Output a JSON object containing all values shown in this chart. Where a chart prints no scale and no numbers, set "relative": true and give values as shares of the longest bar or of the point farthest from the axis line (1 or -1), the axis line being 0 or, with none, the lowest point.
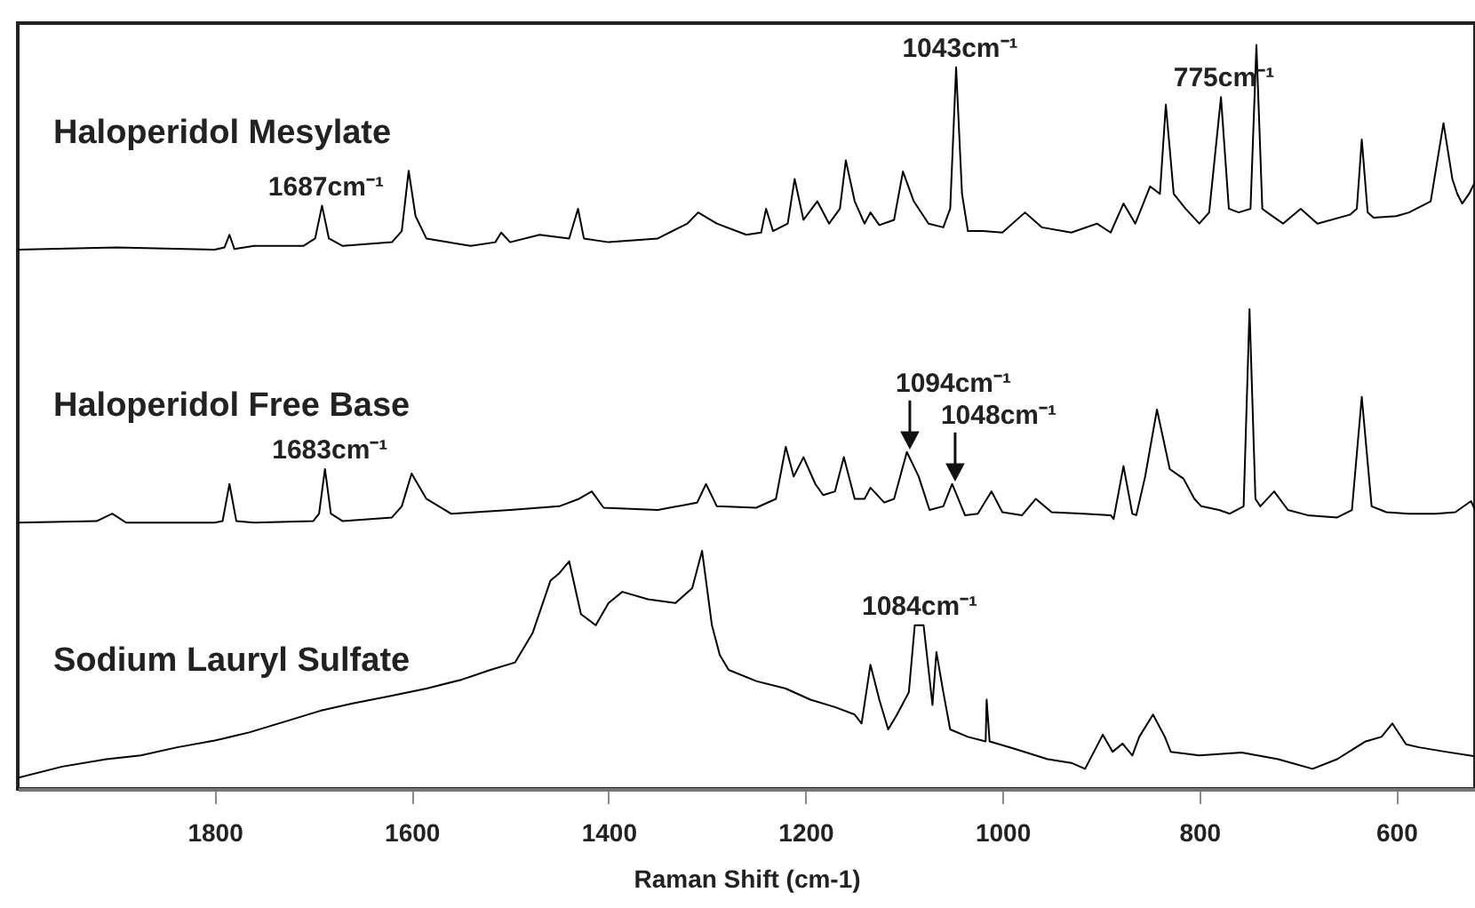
{
  "chart_data": {
    "type": "line",
    "relative": true,
    "xlabel": "Raman Shift (cm-1)",
    "xlim": [
      2000,
      520
    ],
    "xticks": [
      1800,
      1600,
      1400,
      1200,
      1000,
      800,
      600
    ],
    "line_style": "solid",
    "series": [
      {
        "name": "Haloperidol Mesylate",
        "color": "#000000",
        "x": [
          2000,
          1900,
          1800,
          1790,
          1785,
          1780,
          1760,
          1710,
          1698,
          1691,
          1684,
          1670,
          1620,
          1610,
          1603,
          1596,
          1585,
          1540,
          1515,
          1509,
          1500,
          1470,
          1440,
          1431,
          1425,
          1400,
          1350,
          1320,
          1309,
          1290,
          1260,
          1245,
          1240,
          1233,
          1218,
          1211,
          1202,
          1188,
          1176,
          1165,
          1159,
          1150,
          1140,
          1134,
          1125,
          1110,
          1101,
          1090,
          1075,
          1060,
          1053,
          1047,
          1041,
          1035,
          1020,
          1000,
          977,
          960,
          930,
          904,
          890,
          877,
          865,
          850,
          840,
          834,
          826,
          814,
          800,
          790,
          778,
          770,
          760,
          748,
          742,
          736,
          731,
          715,
          697,
          680,
          647,
          640,
          635,
          629,
          623,
          600,
          587,
          565,
          552,
          543,
          538,
          533,
          526,
          520
        ],
        "values": [
          0.725,
          0.728,
          0.725,
          0.728,
          0.745,
          0.726,
          0.73,
          0.73,
          0.74,
          0.784,
          0.74,
          0.73,
          0.735,
          0.75,
          0.831,
          0.77,
          0.74,
          0.73,
          0.735,
          0.748,
          0.735,
          0.745,
          0.74,
          0.78,
          0.74,
          0.735,
          0.74,
          0.76,
          0.775,
          0.76,
          0.745,
          0.748,
          0.78,
          0.75,
          0.76,
          0.82,
          0.765,
          0.79,
          0.76,
          0.78,
          0.845,
          0.79,
          0.76,
          0.775,
          0.758,
          0.765,
          0.83,
          0.79,
          0.76,
          0.755,
          0.78,
          0.97,
          0.8,
          0.75,
          0.75,
          0.748,
          0.775,
          0.755,
          0.748,
          0.76,
          0.748,
          0.787,
          0.76,
          0.81,
          0.8,
          0.92,
          0.8,
          0.78,
          0.76,
          0.775,
          0.93,
          0.78,
          0.775,
          0.78,
          1.0,
          0.78,
          0.775,
          0.76,
          0.78,
          0.76,
          0.772,
          0.78,
          0.873,
          0.775,
          0.768,
          0.77,
          0.775,
          0.79,
          0.895,
          0.82,
          0.8,
          0.787,
          0.8,
          0.816
        ]
      },
      {
        "name": "Haloperidol Free Base",
        "color": "#000000",
        "x": [
          2000,
          1920,
          1904,
          1890,
          1800,
          1792,
          1785,
          1778,
          1760,
          1700,
          1694,
          1688,
          1682,
          1670,
          1620,
          1610,
          1600,
          1585,
          1560,
          1500,
          1450,
          1430,
          1417,
          1405,
          1350,
          1310,
          1301,
          1290,
          1250,
          1230,
          1220,
          1212,
          1202,
          1190,
          1182,
          1170,
          1161,
          1150,
          1140,
          1134,
          1120,
          1110,
          1097,
          1085,
          1074,
          1060,
          1051,
          1038,
          1025,
          1011,
          1000,
          980,
          966,
          950,
          917,
          890,
          887,
          877,
          868,
          864,
          855,
          843,
          830,
          816,
          805,
          798,
          780,
          769,
          755,
          749,
          743,
          738,
          724,
          710,
          690,
          660,
          645,
          635,
          625,
          610,
          587,
          560,
          540,
          524,
          520
        ],
        "values": [
          0.358,
          0.36,
          0.37,
          0.358,
          0.358,
          0.36,
          0.41,
          0.36,
          0.358,
          0.36,
          0.37,
          0.43,
          0.37,
          0.36,
          0.365,
          0.38,
          0.424,
          0.39,
          0.37,
          0.375,
          0.38,
          0.39,
          0.4,
          0.378,
          0.375,
          0.385,
          0.41,
          0.38,
          0.378,
          0.39,
          0.46,
          0.42,
          0.446,
          0.41,
          0.395,
          0.4,
          0.446,
          0.39,
          0.39,
          0.405,
          0.385,
          0.39,
          0.453,
          0.42,
          0.375,
          0.38,
          0.41,
          0.368,
          0.37,
          0.4,
          0.372,
          0.368,
          0.39,
          0.372,
          0.37,
          0.368,
          0.363,
          0.434,
          0.37,
          0.368,
          0.42,
          0.51,
          0.43,
          0.417,
          0.39,
          0.38,
          0.375,
          0.37,
          0.38,
          0.645,
          0.39,
          0.38,
          0.4,
          0.375,
          0.368,
          0.365,
          0.375,
          0.527,
          0.38,
          0.372,
          0.37,
          0.37,
          0.372,
          0.387,
          0.375
        ]
      },
      {
        "name": "Sodium Lauryl Sulfate",
        "color": "#000000",
        "x": [
          2000,
          1955,
          1910,
          1875,
          1838,
          1800,
          1765,
          1730,
          1693,
          1660,
          1621,
          1585,
          1549,
          1520,
          1495,
          1477,
          1459,
          1450,
          1440,
          1428,
          1413,
          1400,
          1386,
          1360,
          1332,
          1315,
          1305,
          1295,
          1287,
          1278,
          1250,
          1220,
          1195,
          1170,
          1150,
          1143,
          1134,
          1125,
          1116,
          1107,
          1095,
          1089,
          1080,
          1071,
          1067,
          1060,
          1053,
          1035,
          1017,
          1016,
          1013,
          990,
          954,
          930,
          916,
          898,
          888,
          878,
          868,
          861,
          847,
          835,
          829,
          800,
          757,
          720,
          685,
          660,
          631,
          615,
          604,
          590,
          577,
          550,
          520
        ],
        "values": [
          0.015,
          0.03,
          0.04,
          0.045,
          0.056,
          0.065,
          0.076,
          0.09,
          0.105,
          0.115,
          0.125,
          0.135,
          0.147,
          0.16,
          0.17,
          0.21,
          0.28,
          0.29,
          0.306,
          0.235,
          0.22,
          0.25,
          0.265,
          0.255,
          0.25,
          0.27,
          0.32,
          0.22,
          0.18,
          0.16,
          0.145,
          0.135,
          0.12,
          0.11,
          0.1,
          0.088,
          0.167,
          0.12,
          0.08,
          0.1,
          0.13,
          0.22,
          0.22,
          0.113,
          0.184,
          0.13,
          0.08,
          0.07,
          0.064,
          0.12,
          0.064,
          0.055,
          0.04,
          0.035,
          0.027,
          0.073,
          0.05,
          0.061,
          0.045,
          0.07,
          0.1,
          0.07,
          0.05,
          0.045,
          0.049,
          0.04,
          0.027,
          0.04,
          0.064,
          0.07,
          0.088,
          0.06,
          0.056,
          0.05,
          0.044
        ]
      }
    ],
    "annotations": [
      {
        "text": "1687cm⁻¹",
        "x": 1687,
        "y": 0.784
      },
      {
        "text": "1043cm⁻¹",
        "x": 1043,
        "y": 0.97
      },
      {
        "text": "775cm⁻¹",
        "x": 775,
        "y": 0.93
      },
      {
        "text": "1094cm⁻¹",
        "x": 1094,
        "y": 0.453
      },
      {
        "text": "1048cm⁻¹",
        "x": 1048,
        "y": 0.41
      },
      {
        "text": "1084cm⁻¹",
        "x": 1084,
        "y": 0.22
      },
      {
        "text": "1683cm⁻¹",
        "x": 1683,
        "y": 0.43
      }
    ]
  }
}
